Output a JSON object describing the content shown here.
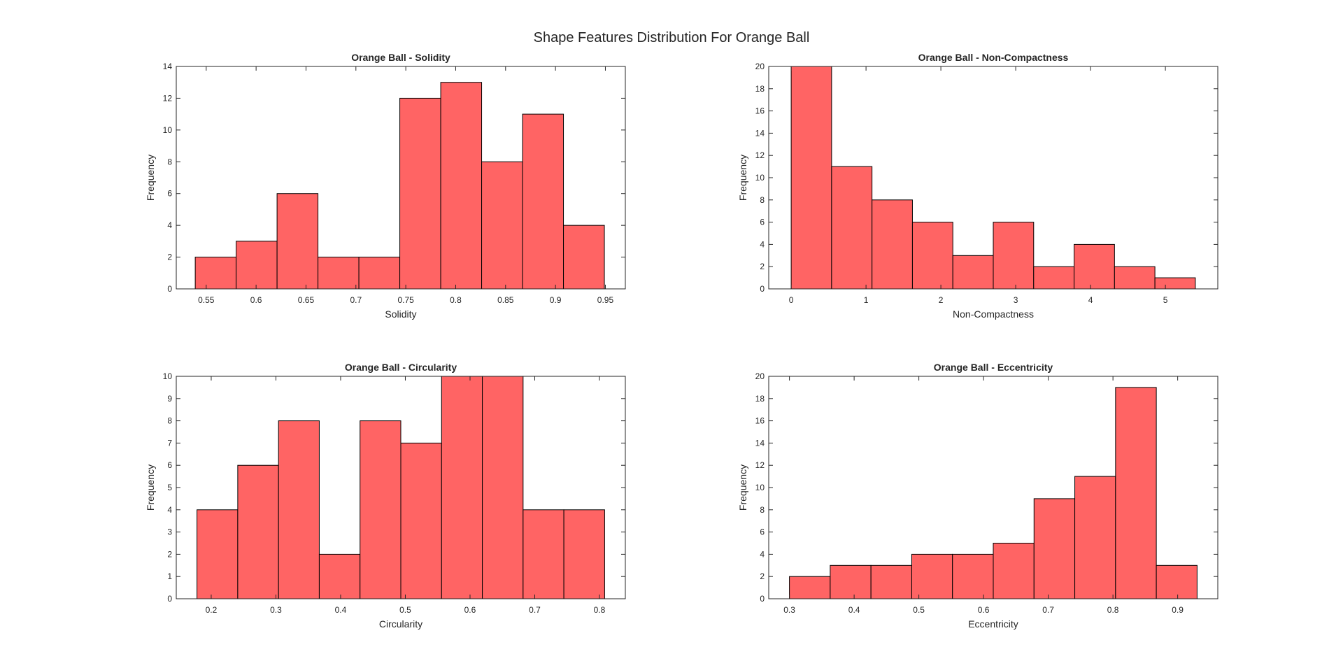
{
  "figure": {
    "title": "Shape Features Distribution For Orange Ball",
    "bar_color": "#FF6464",
    "bar_edge_color": "#000000"
  },
  "chart_data": [
    {
      "type": "bar",
      "title": "Orange Ball - Solidity",
      "xlabel": "Solidity",
      "ylabel": "Frequency",
      "bin_edges": [
        0.539,
        0.58,
        0.621,
        0.662,
        0.703,
        0.744,
        0.785,
        0.826,
        0.867,
        0.908,
        0.949
      ],
      "values": [
        2,
        3,
        6,
        2,
        2,
        12,
        13,
        8,
        11,
        4
      ],
      "xlim": [
        0.52,
        0.97
      ],
      "ylim": [
        0,
        14
      ],
      "xticks": [
        0.55,
        0.6,
        0.65,
        0.7,
        0.75,
        0.8,
        0.85,
        0.9,
        0.95
      ],
      "xtick_labels": [
        "0.55",
        "0.6",
        "0.65",
        "0.7",
        "0.75",
        "0.8",
        "0.85",
        "0.9",
        "0.95"
      ],
      "yticks": [
        0,
        2,
        4,
        6,
        8,
        10,
        12,
        14
      ],
      "ytick_labels": [
        "0",
        "2",
        "4",
        "6",
        "8",
        "10",
        "12",
        "14"
      ],
      "grid": false,
      "legend": "none"
    },
    {
      "type": "bar",
      "title": "Orange Ball - Non-Compactness",
      "xlabel": "Non-Compactness",
      "ylabel": "Frequency",
      "bin_edges": [
        0.0,
        0.54,
        1.08,
        1.62,
        2.16,
        2.7,
        3.24,
        3.78,
        4.32,
        4.86,
        5.4
      ],
      "values": [
        20,
        11,
        8,
        6,
        3,
        6,
        2,
        4,
        2,
        1
      ],
      "xlim": [
        -0.3,
        5.7
      ],
      "ylim": [
        0,
        20
      ],
      "xticks": [
        0,
        1,
        2,
        3,
        4,
        5
      ],
      "xtick_labels": [
        "0",
        "1",
        "2",
        "3",
        "4",
        "5"
      ],
      "yticks": [
        0,
        2,
        4,
        6,
        8,
        10,
        12,
        14,
        16,
        18,
        20
      ],
      "ytick_labels": [
        "0",
        "2",
        "4",
        "6",
        "8",
        "10",
        "12",
        "14",
        "16",
        "18",
        "20"
      ],
      "grid": false,
      "legend": "none"
    },
    {
      "type": "bar",
      "title": "Orange Ball - Circularity",
      "xlabel": "Circularity",
      "ylabel": "Frequency",
      "bin_edges": [
        0.178,
        0.241,
        0.304,
        0.367,
        0.43,
        0.493,
        0.556,
        0.619,
        0.682,
        0.745,
        0.808
      ],
      "values": [
        4,
        6,
        8,
        2,
        8,
        7,
        10,
        10,
        4,
        4
      ],
      "xlim": [
        0.146,
        0.84
      ],
      "ylim": [
        0,
        10
      ],
      "xticks": [
        0.2,
        0.3,
        0.4,
        0.5,
        0.6,
        0.7,
        0.8
      ],
      "xtick_labels": [
        "0.2",
        "0.3",
        "0.4",
        "0.5",
        "0.6",
        "0.7",
        "0.8"
      ],
      "yticks": [
        0,
        1,
        2,
        3,
        4,
        5,
        6,
        7,
        8,
        9,
        10
      ],
      "ytick_labels": [
        "0",
        "1",
        "2",
        "3",
        "4",
        "5",
        "6",
        "7",
        "8",
        "9",
        "10"
      ],
      "grid": false,
      "legend": "none"
    },
    {
      "type": "bar",
      "title": "Orange Ball - Eccentricity",
      "xlabel": "Eccentricity",
      "ylabel": "Frequency",
      "bin_edges": [
        0.3,
        0.363,
        0.426,
        0.489,
        0.552,
        0.615,
        0.678,
        0.741,
        0.804,
        0.867,
        0.93
      ],
      "values": [
        2,
        3,
        3,
        4,
        4,
        5,
        9,
        11,
        19,
        3
      ],
      "xlim": [
        0.268,
        0.962
      ],
      "ylim": [
        0,
        20
      ],
      "xticks": [
        0.3,
        0.4,
        0.5,
        0.6,
        0.7,
        0.8,
        0.9
      ],
      "xtick_labels": [
        "0.3",
        "0.4",
        "0.5",
        "0.6",
        "0.7",
        "0.8",
        "0.9"
      ],
      "yticks": [
        0,
        2,
        4,
        6,
        8,
        10,
        12,
        14,
        16,
        18,
        20
      ],
      "ytick_labels": [
        "0",
        "2",
        "4",
        "6",
        "8",
        "10",
        "12",
        "14",
        "16",
        "18",
        "20"
      ],
      "grid": false,
      "legend": "none"
    }
  ]
}
